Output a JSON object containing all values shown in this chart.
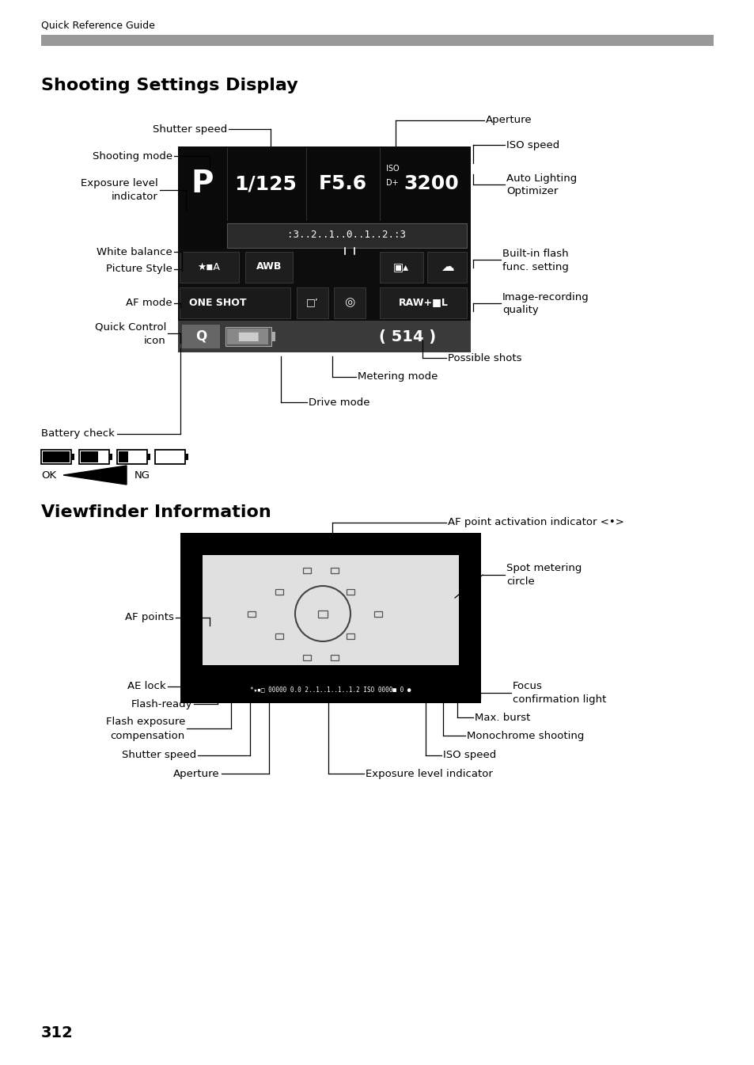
{
  "page_number": "312",
  "header_text": "Quick Reference Guide",
  "header_bar_color": "#999999",
  "bg_color": "#ffffff",
  "section1_title": "Shooting Settings Display",
  "section2_title": "Viewfinder Information",
  "display_bg": "#111111"
}
